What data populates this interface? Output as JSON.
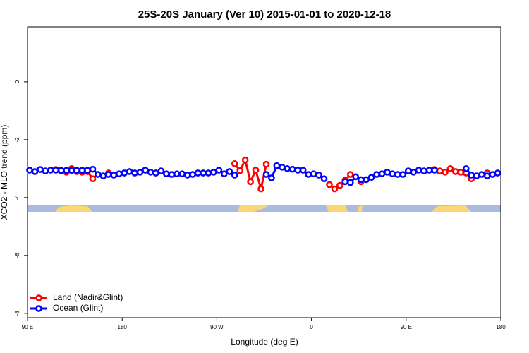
{
  "chart_data": {
    "type": "line",
    "title": "25S-20S January (Ver 10)   2015-01-01 to 2020-12-18",
    "x_label": "Longitude (deg E)",
    "y_label": "XCO2 - MLO trend (ppm)",
    "xlim": [
      90,
      540
    ],
    "xticks": [
      {
        "value": 90,
        "label": "90 E"
      },
      180,
      {
        "value": 270,
        "label": "90 W"
      },
      {
        "value": 360,
        "label": "0"
      },
      {
        "value": 450,
        "label": "90 E"
      },
      {
        "value": 540,
        "label": "180"
      }
    ],
    "ylim": [
      -8.15,
      1.9
    ],
    "yticks": [
      0,
      -2,
      -4,
      -6,
      -8
    ],
    "legend": "bottom-left",
    "x": [
      92,
      97,
      102,
      107,
      112,
      117,
      122,
      127,
      132,
      137,
      142,
      147,
      152,
      157,
      162,
      167,
      172,
      177,
      182,
      187,
      192,
      197,
      202,
      207,
      212,
      217,
      222,
      227,
      232,
      237,
      242,
      247,
      252,
      257,
      262,
      267,
      272,
      277,
      282,
      287,
      292,
      297,
      302,
      307,
      312,
      317,
      322,
      327,
      332,
      337,
      342,
      347,
      352,
      357,
      362,
      367,
      372,
      377,
      382,
      387,
      392,
      397,
      402,
      407,
      412,
      417,
      422,
      427,
      432,
      437,
      442,
      447,
      452,
      457,
      462,
      467,
      472,
      477,
      482,
      487,
      492,
      497,
      502,
      507,
      512,
      517,
      522,
      527,
      532,
      537
    ],
    "series": [
      {
        "name": "Land (Nadir&Glint)",
        "color": "#ff0000",
        "values": [
          null,
          null,
          null,
          null,
          null,
          -3.03,
          -3.08,
          -3.12,
          -3.0,
          -3.1,
          -3.12,
          -3.1,
          -3.35,
          null,
          null,
          -3.15,
          null,
          null,
          null,
          null,
          null,
          null,
          null,
          null,
          null,
          null,
          null,
          null,
          null,
          null,
          null,
          null,
          null,
          null,
          null,
          null,
          null,
          null,
          null,
          -2.83,
          -3.07,
          -2.7,
          -3.45,
          -3.05,
          -3.7,
          -2.85,
          null,
          null,
          null,
          null,
          null,
          null,
          null,
          null,
          null,
          null,
          null,
          -3.55,
          -3.7,
          -3.58,
          -3.4,
          -3.2,
          null,
          -3.45,
          null,
          null,
          null,
          null,
          null,
          null,
          null,
          null,
          null,
          null,
          null,
          null,
          null,
          -3.03,
          -3.08,
          -3.12,
          -3.0,
          -3.1,
          -3.12,
          -3.15,
          -3.35,
          null,
          null,
          -3.15,
          null,
          null
        ]
      },
      {
        "name": "Ocean (Glint)",
        "color": "#0000ff",
        "values": [
          -3.05,
          -3.1,
          -3.03,
          -3.08,
          -3.05,
          -3.05,
          -3.06,
          -3.06,
          -3.06,
          -3.06,
          -3.06,
          -3.06,
          -3.02,
          -3.2,
          -3.25,
          -3.2,
          -3.22,
          -3.18,
          -3.15,
          -3.1,
          -3.15,
          -3.12,
          -3.05,
          -3.12,
          -3.15,
          -3.08,
          -3.18,
          -3.2,
          -3.18,
          -3.18,
          -3.22,
          -3.2,
          -3.15,
          -3.15,
          -3.15,
          -3.12,
          -3.05,
          -3.18,
          -3.1,
          -3.22,
          null,
          null,
          null,
          null,
          null,
          -3.2,
          -3.32,
          -2.9,
          -2.95,
          -3.0,
          -3.02,
          -3.05,
          -3.05,
          -3.2,
          -3.18,
          -3.22,
          -3.35,
          null,
          null,
          null,
          -3.45,
          -3.48,
          -3.28,
          -3.38,
          -3.38,
          -3.3,
          -3.2,
          -3.18,
          -3.12,
          -3.18,
          -3.2,
          -3.2,
          -3.08,
          -3.12,
          -3.05,
          -3.08,
          -3.05,
          -3.05,
          null,
          null,
          null,
          null,
          null,
          -3.0,
          -3.22,
          -3.25,
          -3.2,
          -3.25,
          -3.2,
          -3.15
        ]
      }
    ]
  }
}
